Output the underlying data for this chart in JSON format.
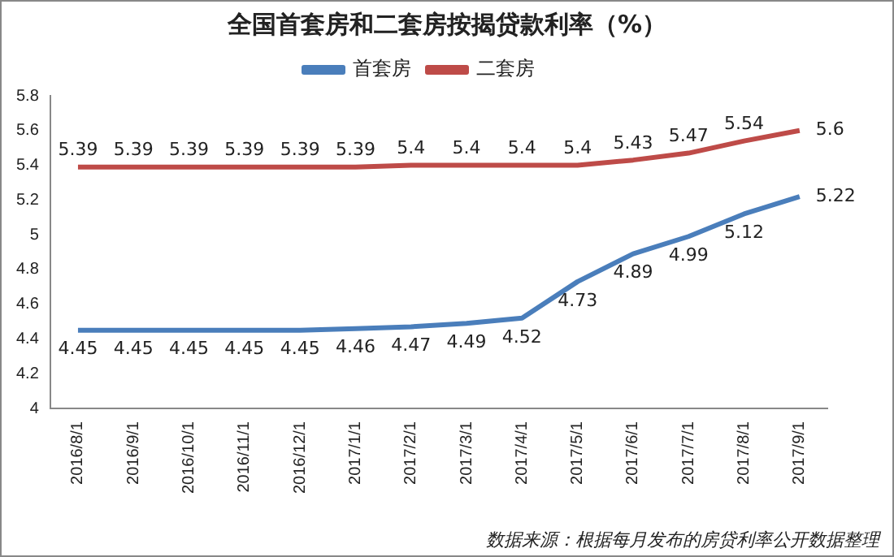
{
  "chart_data": {
    "type": "line",
    "title": "全国首套房和二套房按揭贷款利率（%）",
    "categories": [
      "2016/8/1",
      "2016/9/1",
      "2016/10/1",
      "2016/11/1",
      "2016/12/1",
      "2017/1/1",
      "2017/2/1",
      "2017/3/1",
      "2017/4/1",
      "2017/5/1",
      "2017/6/1",
      "2017/7/1",
      "2017/8/1",
      "2017/9/1"
    ],
    "series": [
      {
        "name": "首套房",
        "color": "#4a7ebb",
        "values": [
          4.45,
          4.45,
          4.45,
          4.45,
          4.45,
          4.46,
          4.47,
          4.49,
          4.52,
          4.73,
          4.89,
          4.99,
          5.12,
          5.22
        ]
      },
      {
        "name": "二套房",
        "color": "#be4b48",
        "values": [
          5.39,
          5.39,
          5.39,
          5.39,
          5.39,
          5.39,
          5.4,
          5.4,
          5.4,
          5.4,
          5.43,
          5.47,
          5.54,
          5.6
        ]
      }
    ],
    "ylim": [
      4,
      5.8
    ],
    "yticks": [
      4,
      4.2,
      4.4,
      4.6,
      4.8,
      5,
      5.2,
      5.4,
      5.6,
      5.8
    ],
    "grid": false,
    "legend": "top",
    "marker": "none",
    "line_style": "solid",
    "data_labels": true,
    "annotations": [
      "数据来源：根据每月发布的房贷利率公开数据整理"
    ]
  }
}
